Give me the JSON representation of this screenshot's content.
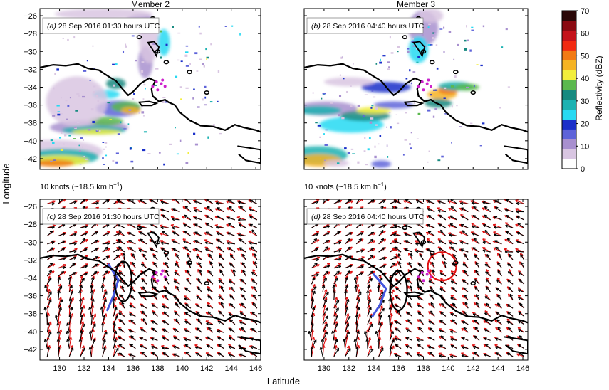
{
  "figure": {
    "member2_title": "Member 2",
    "member3_title": "Member 3",
    "xlabel": "Latitude",
    "ylabel": "Longitude",
    "wind_scale_label": "10 knots (~18.5 km h",
    "wind_scale_sup": "−1",
    "wind_scale_close": ")"
  },
  "chart_data": {
    "type": "heatmap",
    "x_ticks": [
      130,
      132,
      134,
      136,
      138,
      140,
      142,
      144,
      146
    ],
    "y_ticks": [
      -26,
      -28,
      -30,
      -32,
      -34,
      -36,
      -38,
      -40,
      -42
    ],
    "xlim": [
      128.4,
      146.4
    ],
    "ylim": [
      -43.2,
      -25.2
    ],
    "panels": [
      {
        "id": "a",
        "letter": "(a)",
        "label": "28 Sep 2016 01:30 hours UTC",
        "type": "reflectivity",
        "member": 2
      },
      {
        "id": "b",
        "letter": "(b)",
        "label": "28 Sep 2016 04:40 hours UTC",
        "type": "reflectivity",
        "member": 3
      },
      {
        "id": "c",
        "letter": "(c)",
        "label": "28 Sep 2016 01:30 hours UTC",
        "type": "wind",
        "member": 2
      },
      {
        "id": "d",
        "letter": "(d)",
        "label": "28 Sep 2016 04:40 hours UTC",
        "type": "wind",
        "member": 3
      }
    ],
    "colorbar": {
      "label": "Reflectivity (dBZ)",
      "ticks": [
        0,
        10,
        20,
        30,
        40,
        50,
        60,
        70
      ],
      "colors": [
        "#ffffff",
        "#d9c6e2",
        "#a890cf",
        "#5e63d9",
        "#1a2fc9",
        "#27d9f2",
        "#1cb2b2",
        "#178a80",
        "#5bb84e",
        "#f2ee3b",
        "#f5b324",
        "#f27a14",
        "#f22a12",
        "#c4121a",
        "#8a0a12",
        "#2a0808"
      ]
    },
    "wind_colors": {
      "member_a": "#000000",
      "member_b": "#e01010"
    },
    "annotations": {
      "markers_color": "#cc22cc",
      "trough_line_color": "#4455dd",
      "ellipse_black_c": {
        "x": 135.2,
        "y": -34.4
      },
      "ellipse_black_d": {
        "x": 136.0,
        "y": -35.4
      },
      "circle_red_d": {
        "x": 139.5,
        "y": -32.7
      }
    }
  }
}
